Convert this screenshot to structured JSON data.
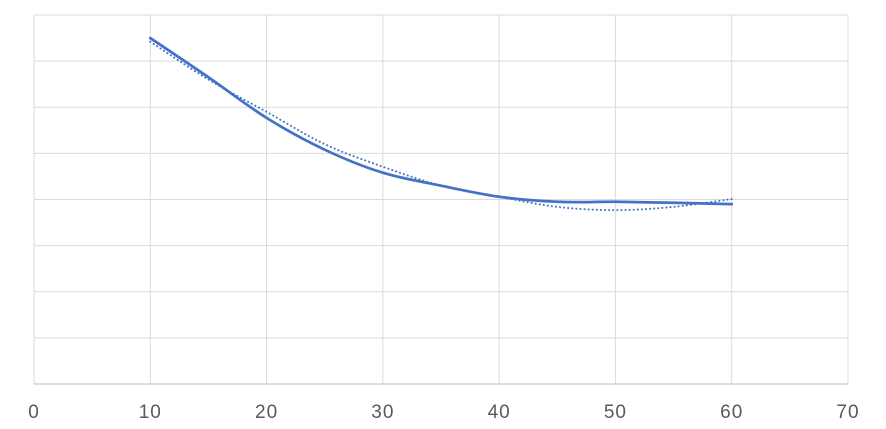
{
  "chart_data": {
    "type": "line",
    "x": [
      10,
      15,
      20,
      25,
      30,
      35,
      40,
      45,
      50,
      55,
      60
    ],
    "series": [
      {
        "color": "#4472c4",
        "line_style": "solid",
        "values": [
          7.5,
          6.65,
          5.77,
          5.08,
          4.58,
          4.3,
          4.06,
          3.95,
          3.95,
          3.93,
          3.9
        ]
      },
      {
        "color": "#4472c4",
        "line_style": "dotted",
        "values": [
          7.42,
          6.6,
          5.9,
          5.2,
          4.71,
          4.3,
          4.06,
          3.84,
          3.77,
          3.84,
          4.01
        ]
      }
    ],
    "xlim": [
      0,
      70
    ],
    "xticks": [
      0,
      10,
      20,
      30,
      40,
      50,
      60,
      70
    ],
    "ylim": [
      0,
      8
    ],
    "yticks": [
      0,
      1,
      2,
      3,
      4,
      5,
      6,
      7,
      8
    ],
    "show_ytick_labels": false,
    "grid": true
  }
}
